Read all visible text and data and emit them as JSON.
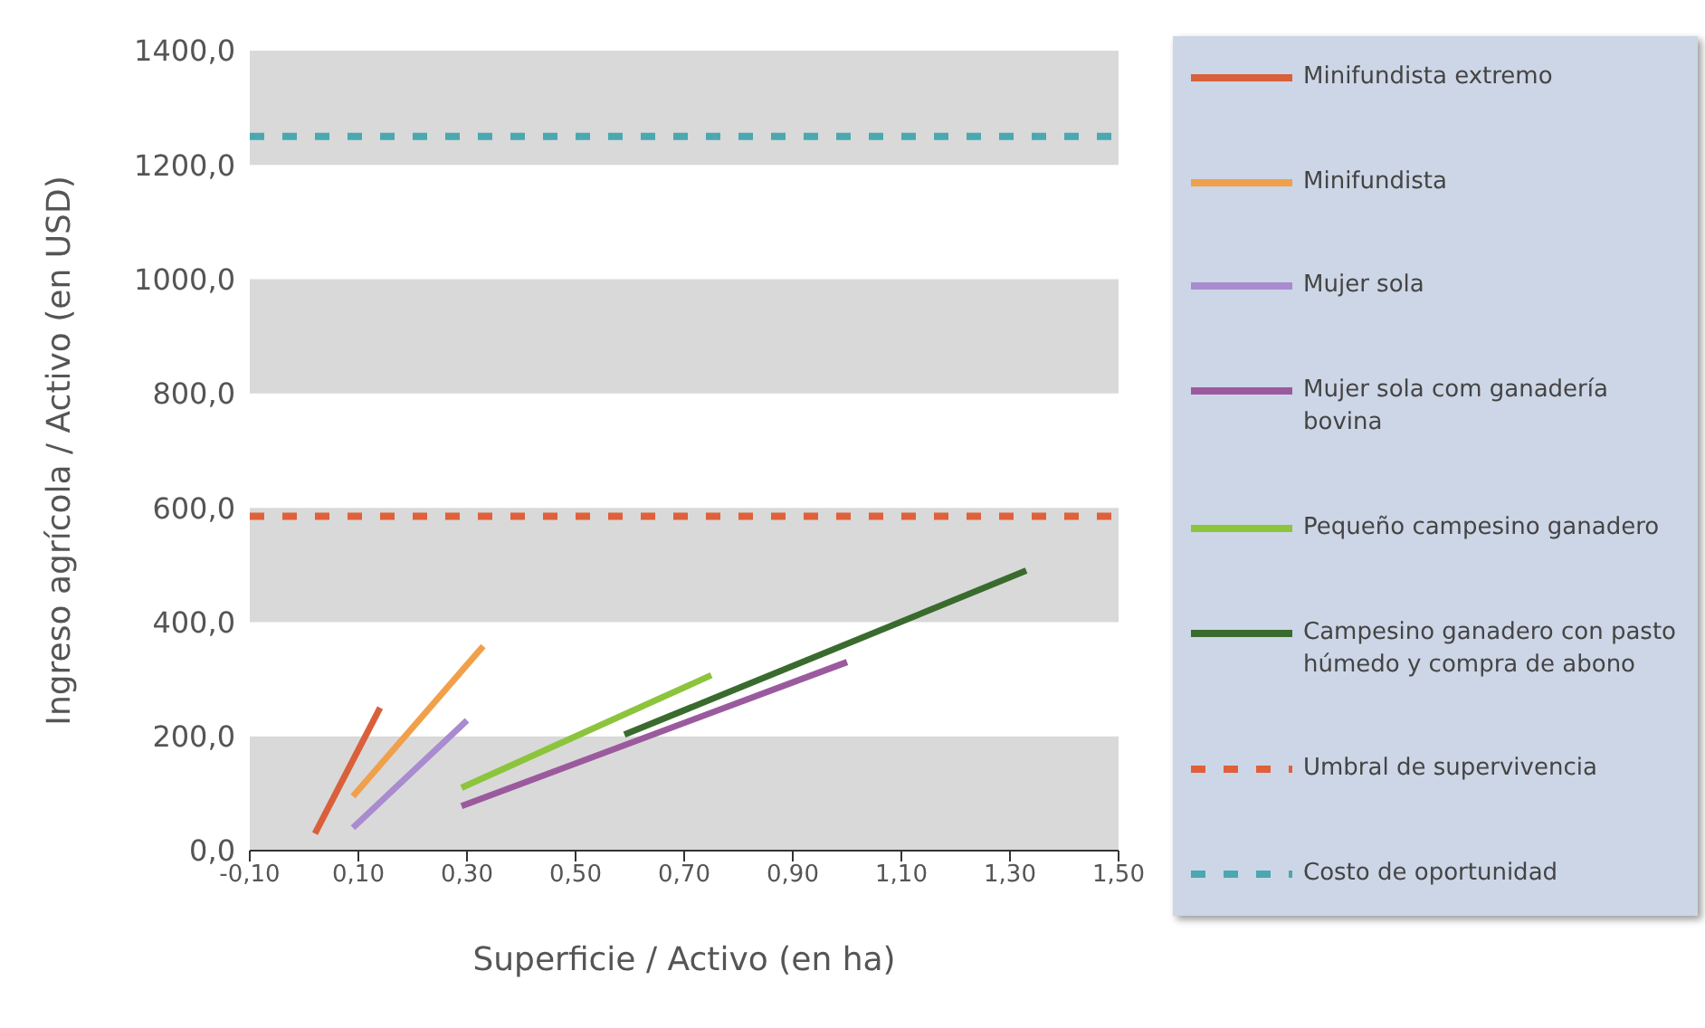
{
  "chart_data": {
    "type": "line",
    "xlabel": "Superficie / Activo (en ha)",
    "ylabel": "Ingreso agrícola / Activo (en USD)",
    "xlim": [
      -0.1,
      1.5
    ],
    "xticks": [
      {
        "value": -0.1,
        "label": "-0,10"
      },
      {
        "value": 0.1,
        "label": "0,10"
      },
      {
        "value": 0.3,
        "label": "0,30"
      },
      {
        "value": 0.5,
        "label": "0,50"
      },
      {
        "value": 0.7,
        "label": "0,70"
      },
      {
        "value": 0.9,
        "label": "0,90"
      },
      {
        "value": 1.1,
        "label": "1,10"
      },
      {
        "value": 1.3,
        "label": "1,30"
      },
      {
        "value": 1.5,
        "label": "1,50"
      }
    ],
    "ylim": [
      0,
      1400
    ],
    "yticks": [
      {
        "value": 0,
        "label": "0,0"
      },
      {
        "value": 200,
        "label": "200,0"
      },
      {
        "value": 400,
        "label": "400,0"
      },
      {
        "value": 600,
        "label": "600,0"
      },
      {
        "value": 800,
        "label": "800,0"
      },
      {
        "value": 1000,
        "label": "1000,0"
      },
      {
        "value": 1200,
        "label": "1200,0"
      },
      {
        "value": 1400,
        "label": "1400,0"
      }
    ],
    "grid": false,
    "legend": "right",
    "marker": "none",
    "line_style": "solid",
    "series": [
      {
        "name": "Minifundista extremo",
        "color": "#d9603b",
        "x": [
          0.02,
          0.14
        ],
        "values": [
          30,
          250
        ]
      },
      {
        "name": "Minifundista",
        "color": "#f0a04b",
        "x": [
          0.09,
          0.33
        ],
        "values": [
          95,
          358
        ]
      },
      {
        "name": "Mujer sola",
        "color": "#a98bd0",
        "x": [
          0.09,
          0.3
        ],
        "values": [
          40,
          228
        ]
      },
      {
        "name": "Mujer sola com ganadería bovina",
        "color": "#9b5a9e",
        "x": [
          0.29,
          1.0
        ],
        "values": [
          78,
          330
        ]
      },
      {
        "name": "Pequeño campesino ganadero",
        "color": "#8cc43c",
        "x": [
          0.29,
          0.75
        ],
        "values": [
          110,
          307
        ]
      },
      {
        "name": "Campesino ganadero con pasto húmedo y compra de abono",
        "color": "#3a6b2e",
        "x": [
          0.59,
          1.33
        ],
        "values": [
          203,
          490
        ]
      }
    ],
    "ref_lines": [
      {
        "axis": "y",
        "value": 585,
        "label": "Umbral de supervivencia",
        "color": "#e0603a",
        "line_style": "dashed"
      },
      {
        "axis": "y",
        "value": 1250,
        "label": "Costo de oportunidad",
        "color": "#4aa8b0",
        "line_style": "dashed"
      }
    ],
    "bands": [
      {
        "axis": "y",
        "from": 0,
        "to": 200,
        "color": "#d9d9d9"
      },
      {
        "axis": "y",
        "from": 400,
        "to": 600,
        "color": "#d9d9d9"
      },
      {
        "axis": "y",
        "from": 800,
        "to": 1000,
        "color": "#d9d9d9"
      },
      {
        "axis": "y",
        "from": 1200,
        "to": 1400,
        "color": "#d9d9d9"
      }
    ]
  }
}
